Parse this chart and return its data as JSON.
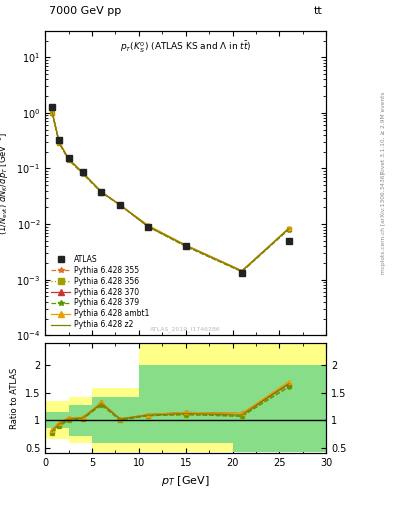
{
  "title_top": "7000 GeV pp",
  "title_top_right": "tt",
  "watermark": "ATLAS_2019_I1746286",
  "rivet_label": "Rivet 3.1.10, ≥ 2.9M events",
  "mcplots_label": "mcplots.cern.ch [arXiv:1306.3436]",
  "xlim": [
    0,
    30
  ],
  "ylim_main": [
    0.0001,
    30
  ],
  "ylim_ratio": [
    0.4,
    2.4
  ],
  "ratio_yticks": [
    0.5,
    1.0,
    1.5,
    2.0
  ],
  "atlas_x": [
    0.75,
    1.5,
    2.5,
    4.0,
    6.0,
    8.0,
    11.0,
    15.0,
    21.0,
    26.0
  ],
  "atlas_y": [
    1.3,
    0.32,
    0.155,
    0.085,
    0.038,
    0.022,
    0.009,
    0.004,
    0.0013,
    0.005
  ],
  "mc_x": [
    0.75,
    1.5,
    2.5,
    4.0,
    6.0,
    8.0,
    11.0,
    15.0,
    21.0,
    26.0
  ],
  "py355_y": [
    0.99,
    0.285,
    0.143,
    0.082,
    0.037,
    0.022,
    0.009,
    0.004,
    0.0014,
    0.0082
  ],
  "py356_y": [
    1.0,
    0.288,
    0.144,
    0.082,
    0.037,
    0.022,
    0.009,
    0.004,
    0.0014,
    0.0081
  ],
  "py370_y": [
    1.03,
    0.295,
    0.148,
    0.083,
    0.038,
    0.022,
    0.009,
    0.0042,
    0.00145,
    0.0083
  ],
  "py379_y": [
    1.0,
    0.285,
    0.143,
    0.081,
    0.037,
    0.022,
    0.009,
    0.004,
    0.0014,
    0.008
  ],
  "pyambt1_y": [
    1.03,
    0.295,
    0.15,
    0.085,
    0.038,
    0.022,
    0.0095,
    0.0042,
    0.00145,
    0.0085
  ],
  "pyz2_y": [
    1.02,
    0.29,
    0.148,
    0.084,
    0.038,
    0.022,
    0.0092,
    0.0041,
    0.00142,
    0.0083
  ],
  "ratio_py355": [
    0.76,
    0.89,
    1.0,
    1.02,
    1.28,
    1.0,
    1.08,
    1.1,
    1.07,
    1.64
  ],
  "ratio_py356": [
    0.77,
    0.9,
    1.0,
    1.02,
    1.28,
    1.0,
    1.08,
    1.1,
    1.07,
    1.62
  ],
  "ratio_py370": [
    0.82,
    0.95,
    1.04,
    1.04,
    1.32,
    1.02,
    1.1,
    1.14,
    1.12,
    1.66
  ],
  "ratio_py379": [
    0.77,
    0.89,
    1.0,
    1.02,
    1.28,
    1.0,
    1.08,
    1.1,
    1.07,
    1.6
  ],
  "ratio_pyambt1": [
    0.82,
    0.95,
    1.04,
    1.05,
    1.32,
    1.02,
    1.1,
    1.14,
    1.12,
    1.7
  ],
  "ratio_pyz2": [
    0.8,
    0.93,
    1.02,
    1.04,
    1.3,
    1.02,
    1.09,
    1.12,
    1.09,
    1.66
  ],
  "band_yellow_x": [
    0,
    1.0,
    1.0,
    2.5,
    2.5,
    5.0,
    5.0,
    10.0,
    10.0,
    20.0,
    20.0,
    30.0
  ],
  "band_yellow_lo": [
    0.65,
    0.65,
    0.65,
    0.65,
    0.58,
    0.58,
    0.42,
    0.42,
    0.42,
    0.42,
    0.42,
    0.42
  ],
  "band_yellow_hi": [
    1.35,
    1.35,
    1.35,
    1.35,
    1.42,
    1.42,
    1.58,
    1.58,
    2.4,
    2.4,
    2.4,
    2.4
  ],
  "band_green_x": [
    0,
    1.0,
    1.0,
    2.5,
    2.5,
    5.0,
    5.0,
    10.0,
    10.0,
    20.0,
    20.0,
    30.0
  ],
  "band_green_lo": [
    0.85,
    0.85,
    0.85,
    0.85,
    0.72,
    0.72,
    0.58,
    0.58,
    0.58,
    0.58,
    0.42,
    0.42
  ],
  "band_green_hi": [
    1.15,
    1.15,
    1.15,
    1.15,
    1.28,
    1.28,
    1.42,
    1.42,
    2.0,
    2.0,
    2.0,
    2.0
  ],
  "color_atlas": "#222222",
  "color_355": "#e07020",
  "color_356": "#a0a000",
  "color_370": "#cc3333",
  "color_379": "#559900",
  "color_ambt1": "#e8a000",
  "color_z2": "#808000",
  "legend_entries": [
    "ATLAS",
    "Pythia 6.428 355",
    "Pythia 6.428 356",
    "Pythia 6.428 370",
    "Pythia 6.428 379",
    "Pythia 6.428 ambt1",
    "Pythia 6.428 z2"
  ]
}
